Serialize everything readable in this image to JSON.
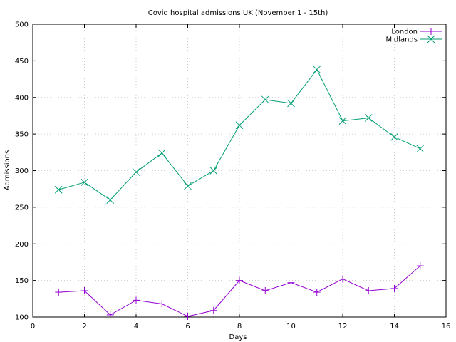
{
  "chart_data": {
    "type": "line",
    "title": "Covid hospital admissions UK (November 1 - 15th)",
    "xlabel": "Days",
    "ylabel": "Admissions",
    "xlim": [
      0,
      16
    ],
    "ylim": [
      100,
      500
    ],
    "xticks": [
      0,
      2,
      4,
      6,
      8,
      10,
      12,
      14,
      16
    ],
    "yticks": [
      100,
      150,
      200,
      250,
      300,
      350,
      400,
      450,
      500
    ],
    "grid": true,
    "legend_position": "top-right",
    "x": [
      1,
      2,
      3,
      4,
      5,
      6,
      7,
      8,
      9,
      10,
      11,
      12,
      13,
      14,
      15
    ],
    "series": [
      {
        "name": "London",
        "color": "#9400d3",
        "marker": "plus",
        "values": [
          134,
          136,
          103,
          123,
          118,
          101,
          109,
          150,
          136,
          147,
          134,
          152,
          136,
          139,
          170
        ]
      },
      {
        "name": "Midlands",
        "color": "#009e73",
        "marker": "cross",
        "values": [
          274,
          284,
          260,
          298,
          324,
          279,
          300,
          362,
          397,
          392,
          438,
          368,
          372,
          346,
          330
        ]
      }
    ]
  }
}
